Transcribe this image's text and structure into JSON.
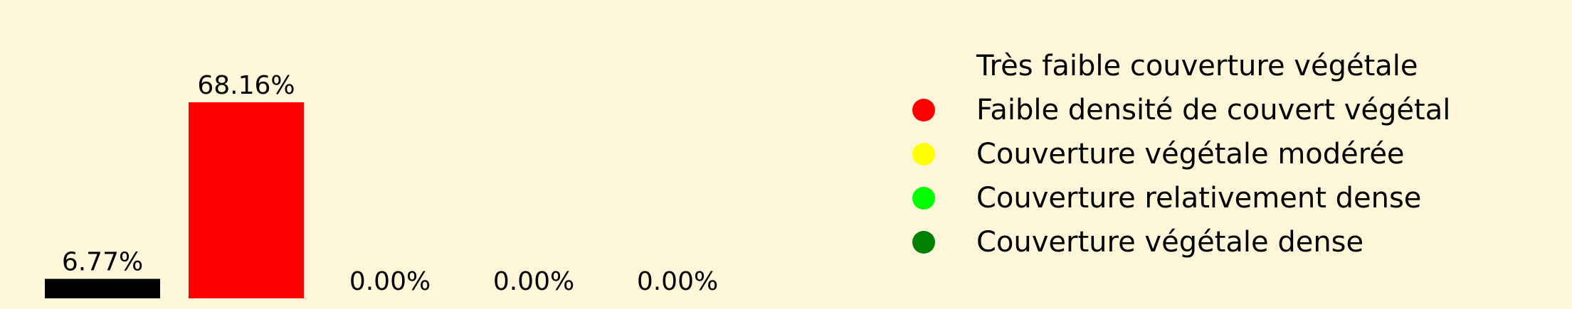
{
  "chart_data": {
    "type": "bar",
    "categories": [
      "Très faible couverture végétale",
      "Faible densité de couvert végétal",
      "Couverture végétale modérée",
      "Couverture relativement dense",
      "Couverture végétale dense"
    ],
    "values": [
      6.77,
      68.16,
      0.0,
      0.0,
      0.0
    ],
    "value_labels": [
      "6.77%",
      "68.16%",
      "0.00%",
      "0.00%",
      "0.00%"
    ],
    "colors": [
      "#000000",
      "#ff0000",
      "#ffff00",
      "#00ff00",
      "#008000"
    ],
    "ylim": [
      0,
      72
    ],
    "xlabel": "",
    "ylabel": "",
    "title": "",
    "grid": false,
    "legend_position": "right",
    "legend": {
      "entries": [
        {
          "label": "Très faible couverture végétale",
          "color": "#000000",
          "marker": "none"
        },
        {
          "label": "Faible densité de couvert végétal",
          "color": "#ff0000",
          "marker": "circle"
        },
        {
          "label": "Couverture végétale modérée",
          "color": "#ffff00",
          "marker": "circle"
        },
        {
          "label": "Couverture relativement dense",
          "color": "#00ff00",
          "marker": "circle"
        },
        {
          "label": "Couverture végétale dense",
          "color": "#008000",
          "marker": "circle"
        }
      ]
    }
  },
  "background_color": "#fdf6d9"
}
